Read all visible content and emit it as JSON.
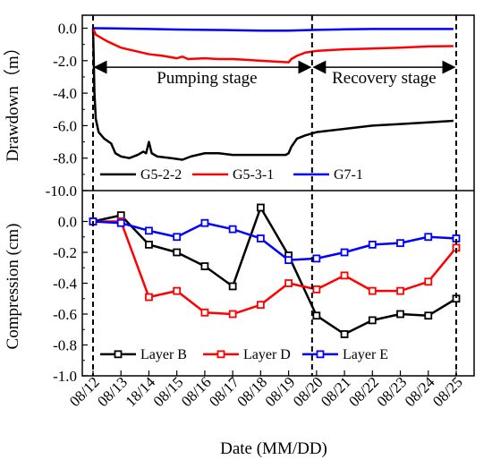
{
  "chart_data": [
    {
      "type": "line",
      "ylabel": "Drawdown（m）",
      "ylim": [
        -10.0,
        0.8
      ],
      "yticks": [
        "0.0",
        "-2.0",
        "-4.0",
        "-6.0",
        "-8.0",
        "-10.0"
      ],
      "ytick_values": [
        0,
        -2,
        -4,
        -6,
        -8,
        -10
      ],
      "annotations": {
        "pumping": "Pumping stage",
        "recovery": "Recovery stage"
      },
      "legend_position": "bottom",
      "series": [
        {
          "name": "G5-2-2",
          "color": "#000000",
          "points": [
            [
              0,
              0.0
            ],
            [
              0.02,
              -1.5
            ],
            [
              0.05,
              -4.0
            ],
            [
              0.1,
              -5.6
            ],
            [
              0.2,
              -6.4
            ],
            [
              0.4,
              -6.8
            ],
            [
              0.65,
              -7.1
            ],
            [
              0.8,
              -7.7
            ],
            [
              1.0,
              -7.9
            ],
            [
              1.3,
              -8.0
            ],
            [
              1.6,
              -7.8
            ],
            [
              1.8,
              -7.6
            ],
            [
              1.9,
              -7.7
            ],
            [
              2.0,
              -7.0
            ],
            [
              2.1,
              -7.7
            ],
            [
              2.3,
              -7.9
            ],
            [
              2.8,
              -8.0
            ],
            [
              3.2,
              -8.1
            ],
            [
              3.5,
              -7.9
            ],
            [
              4.0,
              -7.7
            ],
            [
              4.5,
              -7.7
            ],
            [
              5.0,
              -7.8
            ],
            [
              5.5,
              -7.8
            ],
            [
              6.0,
              -7.8
            ],
            [
              6.5,
              -7.8
            ],
            [
              6.9,
              -7.8
            ],
            [
              7.0,
              -7.7
            ],
            [
              7.1,
              -7.3
            ],
            [
              7.3,
              -6.8
            ],
            [
              7.6,
              -6.6
            ],
            [
              8.0,
              -6.4
            ],
            [
              9.0,
              -6.2
            ],
            [
              10.0,
              -6.0
            ],
            [
              11.0,
              -5.9
            ],
            [
              12.0,
              -5.8
            ],
            [
              12.9,
              -5.7
            ]
          ]
        },
        {
          "name": "G5-3-1",
          "color": "#ff0000",
          "points": [
            [
              0,
              0.0
            ],
            [
              0.1,
              -0.4
            ],
            [
              0.5,
              -0.8
            ],
            [
              1.0,
              -1.2
            ],
            [
              1.5,
              -1.4
            ],
            [
              2.0,
              -1.6
            ],
            [
              2.5,
              -1.7
            ],
            [
              3.0,
              -1.85
            ],
            [
              3.2,
              -1.75
            ],
            [
              3.4,
              -1.9
            ],
            [
              4.0,
              -1.85
            ],
            [
              4.5,
              -1.9
            ],
            [
              5.0,
              -1.9
            ],
            [
              5.5,
              -1.95
            ],
            [
              6.0,
              -2.0
            ],
            [
              6.5,
              -2.05
            ],
            [
              7.0,
              -2.1
            ],
            [
              7.1,
              -1.9
            ],
            [
              7.3,
              -1.7
            ],
            [
              7.6,
              -1.5
            ],
            [
              8.0,
              -1.4
            ],
            [
              9.0,
              -1.3
            ],
            [
              10.0,
              -1.25
            ],
            [
              11.0,
              -1.2
            ],
            [
              12.0,
              -1.12
            ],
            [
              12.9,
              -1.1
            ]
          ]
        },
        {
          "name": "G7-1",
          "color": "#0000ff",
          "points": [
            [
              0,
              0.0
            ],
            [
              1.0,
              -0.02
            ],
            [
              2.0,
              -0.05
            ],
            [
              3.0,
              -0.08
            ],
            [
              4.0,
              -0.1
            ],
            [
              5.0,
              -0.12
            ],
            [
              6.0,
              -0.15
            ],
            [
              7.0,
              -0.15
            ],
            [
              8.0,
              -0.1
            ],
            [
              9.0,
              -0.07
            ],
            [
              10.0,
              -0.05
            ],
            [
              11.0,
              -0.05
            ],
            [
              12.0,
              -0.05
            ],
            [
              12.9,
              -0.05
            ]
          ]
        }
      ]
    },
    {
      "type": "line",
      "ylabel": "Compression (cm)",
      "xlabel": "Date (MM/DD)",
      "ylim": [
        -1.0,
        0.2
      ],
      "yticks": [
        "0.0",
        "-0.2",
        "-0.4",
        "-0.6",
        "-0.8",
        "-1.0"
      ],
      "ytick_values": [
        0,
        -0.2,
        -0.4,
        -0.6,
        -0.8,
        -1.0
      ],
      "x_tick_labels": [
        "08/12",
        "08/13",
        "18/14",
        "08/15",
        "08/16",
        "08/17",
        "08/18",
        "08/19",
        "08/20",
        "08/21",
        "08/22",
        "08/23",
        "08/24",
        "08/25"
      ],
      "legend_position": "bottom",
      "series": [
        {
          "name": "Layer B",
          "color": "#000000",
          "marker": "square",
          "points": [
            [
              0,
              0.0
            ],
            [
              1,
              0.04
            ],
            [
              2,
              -0.15
            ],
            [
              3,
              -0.2
            ],
            [
              4,
              -0.29
            ],
            [
              5,
              -0.42
            ],
            [
              6,
              0.09
            ],
            [
              7,
              -0.22
            ],
            [
              8,
              -0.61
            ],
            [
              9,
              -0.73
            ],
            [
              10,
              -0.64
            ],
            [
              11,
              -0.6
            ],
            [
              12,
              -0.61
            ],
            [
              13,
              -0.5
            ]
          ]
        },
        {
          "name": "Layer D",
          "color": "#ff0000",
          "marker": "square",
          "points": [
            [
              0,
              0.0
            ],
            [
              1,
              0.0
            ],
            [
              2,
              -0.49
            ],
            [
              3,
              -0.45
            ],
            [
              4,
              -0.59
            ],
            [
              5,
              -0.6
            ],
            [
              6,
              -0.54
            ],
            [
              7,
              -0.4
            ],
            [
              8,
              -0.44
            ],
            [
              9,
              -0.35
            ],
            [
              10,
              -0.45
            ],
            [
              11,
              -0.45
            ],
            [
              12,
              -0.39
            ],
            [
              13,
              -0.17
            ]
          ]
        },
        {
          "name": "Layer E",
          "color": "#0000ff",
          "marker": "square",
          "points": [
            [
              0,
              0.0
            ],
            [
              1,
              -0.01
            ],
            [
              2,
              -0.06
            ],
            [
              3,
              -0.1
            ],
            [
              4,
              -0.01
            ],
            [
              5,
              -0.05
            ],
            [
              6,
              -0.11
            ],
            [
              7,
              -0.25
            ],
            [
              8,
              -0.24
            ],
            [
              9,
              -0.2
            ],
            [
              10,
              -0.15
            ],
            [
              11,
              -0.14
            ],
            [
              12,
              -0.1
            ],
            [
              13,
              -0.11
            ]
          ]
        }
      ]
    }
  ],
  "stage_boundaries": [
    0,
    7.84,
    13
  ]
}
